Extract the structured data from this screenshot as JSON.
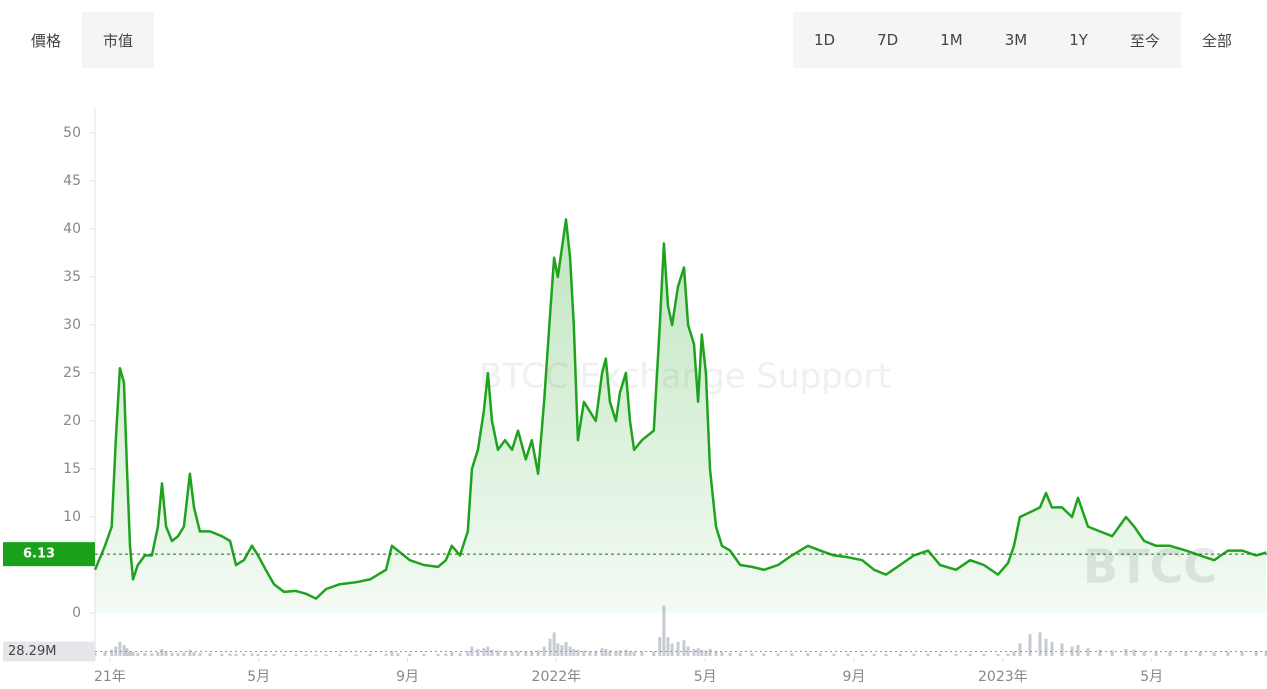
{
  "tabs": [
    "價格",
    "市值"
  ],
  "ranges": [
    "1D",
    "7D",
    "1M",
    "3M",
    "1Y",
    "至今",
    "全部"
  ],
  "chart_data": {
    "type": "line",
    "watermark": "BTCC Exchange Support",
    "logo": "BTCC",
    "x": [
      -0.4,
      -0.13,
      0.05,
      0.16,
      0.27,
      0.38,
      0.46,
      0.54,
      0.62,
      0.75,
      0.94,
      1.13,
      1.29,
      1.4,
      1.51,
      1.67,
      1.83,
      1.99,
      2.15,
      2.26,
      2.42,
      2.69,
      3.01,
      3.23,
      3.39,
      3.6,
      3.82,
      3.98,
      4.19,
      4.41,
      4.68,
      5.0,
      5.27,
      5.54,
      5.81,
      6.18,
      6.61,
      6.99,
      7.42,
      7.58,
      7.74,
      8.06,
      8.44,
      8.82,
      9.03,
      9.19,
      9.41,
      9.62,
      9.73,
      9.89,
      10.05,
      10.16,
      10.27,
      10.43,
      10.62,
      10.81,
      10.97,
      11.18,
      11.34,
      11.51,
      11.67,
      11.83,
      11.94,
      12.04,
      12.15,
      12.26,
      12.37,
      12.47,
      12.58,
      12.74,
      12.9,
      13.06,
      13.23,
      13.33,
      13.44,
      13.6,
      13.71,
      13.87,
      13.98,
      14.09,
      14.3,
      14.62,
      14.78,
      14.89,
      15.0,
      15.11,
      15.27,
      15.43,
      15.54,
      15.7,
      15.81,
      15.91,
      16.02,
      16.13,
      16.29,
      16.45,
      16.67,
      16.94,
      17.26,
      17.58,
      17.96,
      18.33,
      18.76,
      19.09,
      19.46,
      19.84,
      20.22,
      20.54,
      20.86,
      21.24,
      21.61,
      21.99,
      22.31,
      22.74,
      23.12,
      23.49,
      23.87,
      24.14,
      24.3,
      24.46,
      24.73,
      25.0,
      25.16,
      25.32,
      25.59,
      25.86,
      26.02,
      26.29,
      26.61,
      26.94,
      27.31,
      27.53,
      27.8,
      28.12,
      28.49,
      28.92,
      29.3,
      29.68,
      30.05,
      30.43,
      30.81,
      31.08
    ],
    "series": [
      {
        "color": "#1fa31f",
        "values": [
          4.5,
          7,
          9,
          18,
          25.5,
          24,
          15,
          7,
          3.5,
          5,
          6,
          6,
          9,
          13.5,
          9,
          7.5,
          8,
          9,
          14.5,
          11,
          8.5,
          8.5,
          8,
          7.5,
          5,
          5.5,
          7,
          6,
          4.5,
          3,
          2.2,
          2.3,
          2,
          1.5,
          2.5,
          3,
          3.2,
          3.5,
          4.5,
          7,
          6.5,
          5.5,
          5,
          4.8,
          5.5,
          7,
          6,
          8.5,
          15,
          17,
          21,
          25,
          20,
          17,
          18,
          17,
          19,
          16,
          18,
          14.5,
          22,
          31,
          37,
          35,
          38,
          41,
          37,
          30,
          18,
          22,
          21,
          20,
          25,
          26.5,
          22,
          20,
          23,
          25,
          20,
          17,
          18,
          19,
          30,
          38.5,
          32,
          30,
          34,
          36,
          30,
          28,
          22,
          29,
          25,
          15,
          9,
          7,
          6.5,
          5,
          4.8,
          4.5,
          5,
          6,
          7,
          6.5,
          6,
          5.8,
          5.5,
          4.5,
          4,
          5,
          6,
          6.5,
          5,
          4.5,
          5.5,
          5,
          4,
          5.2,
          7,
          10,
          10.5,
          11,
          12.5,
          11,
          11,
          10,
          12,
          9,
          8.5,
          8,
          10,
          9,
          7.5,
          7,
          7,
          6.5,
          6,
          5.5,
          6.5,
          6.5,
          6,
          6.3
        ]
      }
    ],
    "xlim": [
      -0.4,
      31.1
    ],
    "xticks": [
      {
        "value": 0,
        "label": "21年"
      },
      {
        "value": 4,
        "label": "5月"
      },
      {
        "value": 8,
        "label": "9月"
      },
      {
        "value": 12,
        "label": "2022年"
      },
      {
        "value": 16,
        "label": "5月"
      },
      {
        "value": 20,
        "label": "9月"
      },
      {
        "value": 24,
        "label": "2023年"
      },
      {
        "value": 28,
        "label": "5月"
      }
    ],
    "ylim": [
      0,
      50
    ],
    "yticks": [
      0,
      10,
      15,
      20,
      25,
      30,
      35,
      40,
      45,
      50
    ],
    "current_price": 6.13,
    "volume": {
      "color": "#c5cad3",
      "values": [
        20,
        25,
        40,
        60,
        90,
        70,
        50,
        30,
        25,
        20,
        20,
        18,
        25,
        45,
        30,
        20,
        20,
        22,
        40,
        25,
        20,
        18,
        15,
        15,
        14,
        14,
        16,
        14,
        12,
        12,
        10,
        10,
        10,
        9,
        10,
        10,
        10,
        12,
        15,
        30,
        18,
        15,
        14,
        14,
        16,
        25,
        18,
        30,
        60,
        45,
        50,
        60,
        40,
        35,
        30,
        28,
        30,
        28,
        30,
        35,
        60,
        110,
        150,
        80,
        70,
        90,
        60,
        45,
        40,
        35,
        30,
        30,
        50,
        45,
        35,
        30,
        35,
        40,
        30,
        28,
        28,
        30,
        120,
        320,
        120,
        80,
        90,
        100,
        60,
        45,
        50,
        40,
        35,
        45,
        30,
        25,
        20,
        18,
        18,
        16,
        16,
        18,
        18,
        16,
        15,
        15,
        14,
        14,
        13,
        14,
        15,
        15,
        14,
        13,
        14,
        14,
        13,
        15,
        30,
        80,
        140,
        150,
        110,
        90,
        80,
        60,
        70,
        50,
        40,
        35,
        45,
        40,
        30,
        28,
        28,
        25,
        25,
        24,
        26,
        28,
        30,
        28
      ],
      "ylim": [
        0,
        350
      ],
      "current": {
        "value": 28.29,
        "label": "28.29M"
      }
    }
  }
}
